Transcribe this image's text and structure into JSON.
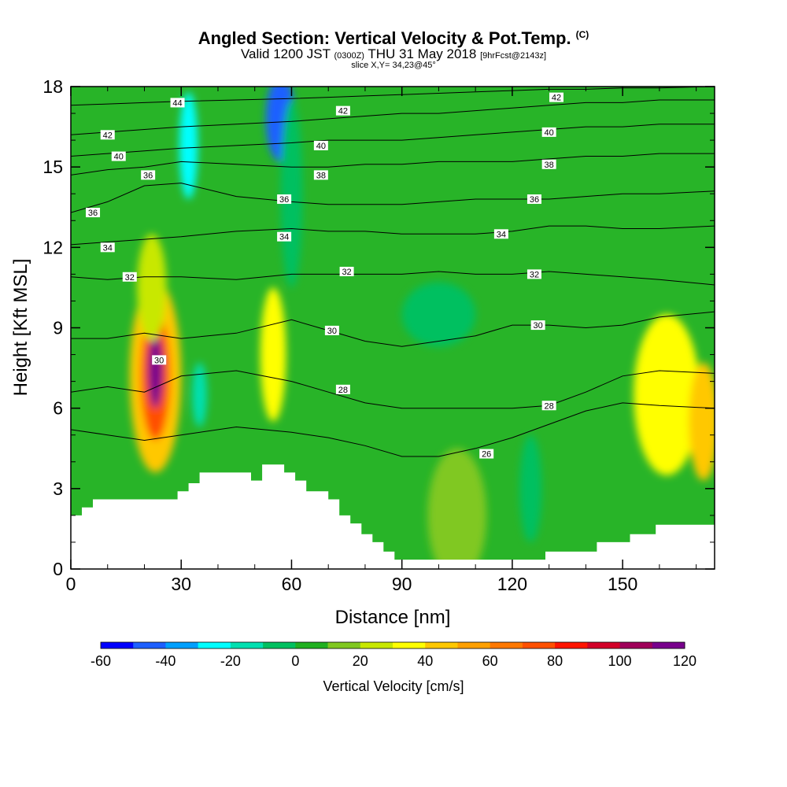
{
  "title": {
    "main": "Angled Section: Vertical Velocity & Pot.Temp.",
    "mark": "(C)",
    "valid_a": "Valid 1200 JST",
    "valid_b": "(0300Z)",
    "valid_c": "THU 31 May 2018",
    "valid_d": "[9hrFcst@2143z]",
    "slice": "slice X,Y= 34,23@45°"
  },
  "chart_data": {
    "type": "heatmap",
    "xlabel": "Distance [nm]",
    "ylabel": "Height [Kft MSL]",
    "xlim": [
      0,
      175
    ],
    "ylim": [
      0,
      18
    ],
    "x_ticks": [
      0,
      30,
      60,
      90,
      120,
      150
    ],
    "y_ticks": [
      0,
      3,
      6,
      9,
      12,
      15,
      18
    ],
    "colorbar": {
      "label": "Vertical Velocity [cm/s]",
      "tick_labels": [
        -60,
        -40,
        -20,
        0,
        20,
        40,
        60,
        80,
        100,
        120
      ],
      "levels": [
        -60,
        -50,
        -40,
        -30,
        -20,
        -10,
        0,
        10,
        20,
        30,
        40,
        50,
        60,
        70,
        80,
        90,
        100,
        110,
        120
      ],
      "colors": [
        "#0000ff",
        "#1e60ff",
        "#00a0ff",
        "#00ffff",
        "#00e0b0",
        "#00c060",
        "#20b020",
        "#80c820",
        "#c8e800",
        "#ffff00",
        "#ffc800",
        "#ffa000",
        "#ff7800",
        "#ff5000",
        "#ff1400",
        "#d20028",
        "#a0005a",
        "#78008c"
      ]
    },
    "background_color": "#28b428",
    "velocity_features": [
      {
        "x": 23,
        "y": 7.2,
        "rx": 7,
        "ry": 3.6,
        "value": 40
      },
      {
        "x": 23,
        "y": 7.2,
        "rx": 4,
        "ry": 2.4,
        "value": 75
      },
      {
        "x": 23,
        "y": 7.4,
        "rx": 2,
        "ry": 1.4,
        "value": 110
      },
      {
        "x": 22,
        "y": 10.5,
        "rx": 4,
        "ry": 2,
        "value": 20
      },
      {
        "x": 55,
        "y": 8,
        "rx": 3.5,
        "ry": 2.5,
        "value": 30
      },
      {
        "x": 57,
        "y": 16.8,
        "rx": 4,
        "ry": 1.6,
        "value": -45
      },
      {
        "x": 60,
        "y": 14,
        "rx": 3,
        "ry": 3.5,
        "value": -10
      },
      {
        "x": 32,
        "y": 15.8,
        "rx": 2.5,
        "ry": 2,
        "value": -25
      },
      {
        "x": 35,
        "y": 6.5,
        "rx": 2,
        "ry": 1.2,
        "value": -20
      },
      {
        "x": 100,
        "y": 9.5,
        "rx": 10,
        "ry": 1.2,
        "value": -10
      },
      {
        "x": 162,
        "y": 6.5,
        "rx": 9,
        "ry": 3,
        "value": 30
      },
      {
        "x": 172,
        "y": 5.5,
        "rx": 4,
        "ry": 2.2,
        "value": 40
      },
      {
        "x": 105,
        "y": 2,
        "rx": 8,
        "ry": 2.5,
        "value": 10
      },
      {
        "x": 125,
        "y": 3,
        "rx": 3,
        "ry": 2,
        "value": -10
      }
    ],
    "contours": [
      {
        "value": 26,
        "label": "26",
        "points": [
          [
            0,
            5.2
          ],
          [
            10,
            5.0
          ],
          [
            20,
            4.8
          ],
          [
            30,
            5.0
          ],
          [
            45,
            5.3
          ],
          [
            60,
            5.1
          ],
          [
            70,
            4.9
          ],
          [
            80,
            4.6
          ],
          [
            90,
            4.2
          ],
          [
            100,
            4.2
          ],
          [
            110,
            4.5
          ],
          [
            120,
            4.9
          ],
          [
            130,
            5.4
          ],
          [
            140,
            5.9
          ],
          [
            150,
            6.2
          ],
          [
            160,
            6.1
          ],
          [
            175,
            6.0
          ]
        ]
      },
      {
        "value": 28,
        "label": "28",
        "points": [
          [
            0,
            6.6
          ],
          [
            10,
            6.8
          ],
          [
            20,
            6.6
          ],
          [
            30,
            7.2
          ],
          [
            45,
            7.4
          ],
          [
            60,
            7.0
          ],
          [
            70,
            6.6
          ],
          [
            80,
            6.2
          ],
          [
            90,
            6.0
          ],
          [
            100,
            6.0
          ],
          [
            110,
            6.0
          ],
          [
            120,
            6.0
          ],
          [
            130,
            6.1
          ],
          [
            140,
            6.6
          ],
          [
            150,
            7.2
          ],
          [
            160,
            7.4
          ],
          [
            175,
            7.3
          ]
        ]
      },
      {
        "value": 30,
        "label": "30",
        "points": [
          [
            0,
            8.6
          ],
          [
            10,
            8.6
          ],
          [
            20,
            8.8
          ],
          [
            30,
            8.6
          ],
          [
            45,
            8.8
          ],
          [
            60,
            9.3
          ],
          [
            70,
            8.9
          ],
          [
            80,
            8.5
          ],
          [
            90,
            8.3
          ],
          [
            100,
            8.5
          ],
          [
            110,
            8.7
          ],
          [
            120,
            9.1
          ],
          [
            130,
            9.1
          ],
          [
            140,
            9.0
          ],
          [
            150,
            9.1
          ],
          [
            160,
            9.4
          ],
          [
            175,
            9.6
          ]
        ]
      },
      {
        "value": 32,
        "label": "32",
        "points": [
          [
            0,
            10.9
          ],
          [
            10,
            10.8
          ],
          [
            20,
            10.9
          ],
          [
            30,
            10.9
          ],
          [
            45,
            10.8
          ],
          [
            60,
            11.0
          ],
          [
            70,
            11.0
          ],
          [
            80,
            11.0
          ],
          [
            90,
            11.0
          ],
          [
            100,
            11.1
          ],
          [
            110,
            11.0
          ],
          [
            120,
            11.0
          ],
          [
            130,
            11.1
          ],
          [
            140,
            11.0
          ],
          [
            150,
            10.9
          ],
          [
            160,
            10.8
          ],
          [
            175,
            10.6
          ]
        ]
      },
      {
        "value": 34,
        "label": "34",
        "points": [
          [
            0,
            12.1
          ],
          [
            10,
            12.2
          ],
          [
            20,
            12.3
          ],
          [
            30,
            12.4
          ],
          [
            45,
            12.6
          ],
          [
            60,
            12.7
          ],
          [
            70,
            12.6
          ],
          [
            80,
            12.6
          ],
          [
            90,
            12.5
          ],
          [
            100,
            12.5
          ],
          [
            110,
            12.5
          ],
          [
            120,
            12.6
          ],
          [
            130,
            12.8
          ],
          [
            140,
            12.8
          ],
          [
            150,
            12.7
          ],
          [
            160,
            12.7
          ],
          [
            175,
            12.8
          ]
        ]
      },
      {
        "value": 36,
        "label": "36",
        "points": [
          [
            0,
            13.3
          ],
          [
            10,
            13.7
          ],
          [
            20,
            14.3
          ],
          [
            30,
            14.4
          ],
          [
            45,
            13.9
          ],
          [
            60,
            13.7
          ],
          [
            70,
            13.6
          ],
          [
            80,
            13.6
          ],
          [
            90,
            13.6
          ],
          [
            100,
            13.7
          ],
          [
            110,
            13.8
          ],
          [
            120,
            13.8
          ],
          [
            130,
            13.8
          ],
          [
            140,
            13.9
          ],
          [
            150,
            14.0
          ],
          [
            160,
            14.0
          ],
          [
            175,
            14.1
          ]
        ]
      },
      {
        "value": 38,
        "label": "38",
        "points": [
          [
            0,
            14.7
          ],
          [
            10,
            14.9
          ],
          [
            20,
            15.0
          ],
          [
            30,
            15.2
          ],
          [
            45,
            15.1
          ],
          [
            60,
            15.0
          ],
          [
            70,
            15.0
          ],
          [
            80,
            15.1
          ],
          [
            90,
            15.1
          ],
          [
            100,
            15.2
          ],
          [
            110,
            15.2
          ],
          [
            120,
            15.2
          ],
          [
            130,
            15.3
          ],
          [
            140,
            15.4
          ],
          [
            150,
            15.4
          ],
          [
            160,
            15.5
          ],
          [
            175,
            15.5
          ]
        ]
      },
      {
        "value": 40,
        "label": "40",
        "points": [
          [
            0,
            15.4
          ],
          [
            10,
            15.5
          ],
          [
            20,
            15.6
          ],
          [
            30,
            15.7
          ],
          [
            45,
            15.8
          ],
          [
            60,
            15.9
          ],
          [
            70,
            16.0
          ],
          [
            80,
            16.0
          ],
          [
            90,
            16.0
          ],
          [
            100,
            16.1
          ],
          [
            110,
            16.2
          ],
          [
            120,
            16.3
          ],
          [
            130,
            16.4
          ],
          [
            140,
            16.5
          ],
          [
            150,
            16.5
          ],
          [
            160,
            16.6
          ],
          [
            175,
            16.6
          ]
        ]
      },
      {
        "value": 42,
        "label": "42",
        "points": [
          [
            0,
            16.2
          ],
          [
            10,
            16.3
          ],
          [
            20,
            16.4
          ],
          [
            30,
            16.5
          ],
          [
            45,
            16.6
          ],
          [
            60,
            16.7
          ],
          [
            70,
            16.8
          ],
          [
            80,
            16.9
          ],
          [
            90,
            17.0
          ],
          [
            100,
            17.0
          ],
          [
            110,
            17.1
          ],
          [
            120,
            17.2
          ],
          [
            130,
            17.3
          ],
          [
            140,
            17.4
          ],
          [
            150,
            17.4
          ],
          [
            160,
            17.5
          ],
          [
            175,
            17.5
          ]
        ]
      },
      {
        "value": 44,
        "label": "44",
        "points": [
          [
            0,
            17.3
          ],
          [
            10,
            17.35
          ],
          [
            20,
            17.4
          ],
          [
            30,
            17.45
          ],
          [
            45,
            17.5
          ],
          [
            60,
            17.55
          ],
          [
            70,
            17.6
          ],
          [
            80,
            17.65
          ],
          [
            90,
            17.7
          ],
          [
            100,
            17.75
          ],
          [
            110,
            17.8
          ],
          [
            120,
            17.85
          ],
          [
            130,
            17.9
          ],
          [
            140,
            17.9
          ],
          [
            150,
            17.95
          ],
          [
            160,
            17.95
          ],
          [
            175,
            18.0
          ]
        ]
      }
    ],
    "contour_labels": [
      {
        "text": "26",
        "x": 113,
        "y": 4.3
      },
      {
        "text": "28",
        "x": 74,
        "y": 6.7
      },
      {
        "text": "28",
        "x": 130,
        "y": 6.1
      },
      {
        "text": "30",
        "x": 24,
        "y": 7.8
      },
      {
        "text": "30",
        "x": 71,
        "y": 8.9
      },
      {
        "text": "30",
        "x": 127,
        "y": 9.1
      },
      {
        "text": "32",
        "x": 16,
        "y": 10.9
      },
      {
        "text": "32",
        "x": 75,
        "y": 11.1
      },
      {
        "text": "32",
        "x": 126,
        "y": 11.0
      },
      {
        "text": "34",
        "x": 10,
        "y": 12.0
      },
      {
        "text": "34",
        "x": 58,
        "y": 12.4
      },
      {
        "text": "34",
        "x": 117,
        "y": 12.5
      },
      {
        "text": "36",
        "x": 6,
        "y": 13.3
      },
      {
        "text": "36",
        "x": 21,
        "y": 14.7
      },
      {
        "text": "36",
        "x": 58,
        "y": 13.8
      },
      {
        "text": "36",
        "x": 126,
        "y": 13.8
      },
      {
        "text": "38",
        "x": 68,
        "y": 14.7
      },
      {
        "text": "38",
        "x": 130,
        "y": 15.1
      },
      {
        "text": "40",
        "x": 13,
        "y": 15.4
      },
      {
        "text": "40",
        "x": 68,
        "y": 15.8
      },
      {
        "text": "40",
        "x": 130,
        "y": 16.3
      },
      {
        "text": "42",
        "x": 10,
        "y": 16.2
      },
      {
        "text": "42",
        "x": 74,
        "y": 17.1
      },
      {
        "text": "42",
        "x": 132,
        "y": 17.6
      },
      {
        "text": "44",
        "x": 29,
        "y": 17.4
      }
    ],
    "terrain": [
      [
        0,
        2.0
      ],
      [
        3,
        2.0
      ],
      [
        3,
        2.3
      ],
      [
        6,
        2.3
      ],
      [
        6,
        2.6
      ],
      [
        10,
        2.6
      ],
      [
        10,
        2.6
      ],
      [
        29,
        2.6
      ],
      [
        29,
        2.9
      ],
      [
        32,
        2.9
      ],
      [
        32,
        3.2
      ],
      [
        35,
        3.2
      ],
      [
        35,
        3.6
      ],
      [
        49,
        3.6
      ],
      [
        49,
        3.3
      ],
      [
        52,
        3.3
      ],
      [
        52,
        3.9
      ],
      [
        58,
        3.9
      ],
      [
        58,
        3.6
      ],
      [
        61,
        3.6
      ],
      [
        61,
        3.3
      ],
      [
        64,
        3.3
      ],
      [
        64,
        2.9
      ],
      [
        70,
        2.9
      ],
      [
        70,
        2.6
      ],
      [
        73,
        2.6
      ],
      [
        73,
        2.0
      ],
      [
        76,
        2.0
      ],
      [
        76,
        1.7
      ],
      [
        79,
        1.7
      ],
      [
        79,
        1.3
      ],
      [
        82,
        1.3
      ],
      [
        82,
        1.0
      ],
      [
        85,
        1.0
      ],
      [
        85,
        0.65
      ],
      [
        88,
        0.65
      ],
      [
        88,
        0.35
      ],
      [
        129,
        0.35
      ],
      [
        129,
        0.65
      ],
      [
        143,
        0.65
      ],
      [
        143,
        1.0
      ],
      [
        152,
        1.0
      ],
      [
        152,
        1.3
      ],
      [
        159,
        1.3
      ],
      [
        159,
        1.65
      ],
      [
        175,
        1.65
      ]
    ]
  }
}
